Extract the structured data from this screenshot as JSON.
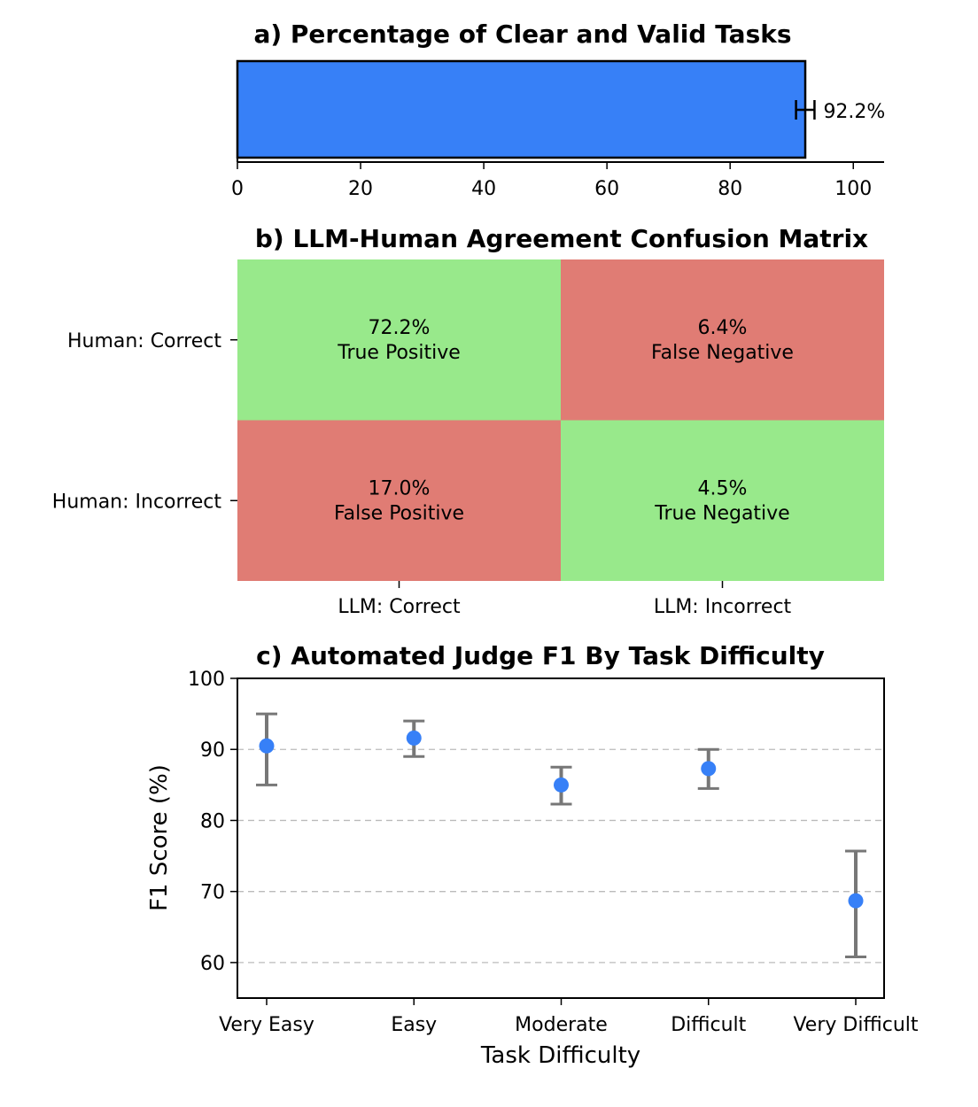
{
  "chart_data": [
    {
      "type": "bar",
      "orientation": "horizontal",
      "title": "a) Percentage of Clear and Valid Tasks",
      "values": [
        92.2
      ],
      "error": [
        1.5
      ],
      "value_label": "92.2%",
      "xlim": [
        0,
        105
      ],
      "xticks": [
        0,
        20,
        40,
        60,
        80,
        100
      ],
      "colors": {
        "bar": "#3780f7"
      }
    },
    {
      "type": "heatmap",
      "title": "b) LLM-Human Agreement Confusion Matrix",
      "rows": [
        "Human: Correct",
        "Human: Incorrect"
      ],
      "cols": [
        "LLM: Correct",
        "LLM: Incorrect"
      ],
      "cells": [
        [
          {
            "value": "72.2%",
            "label": "True Positive",
            "color": "#98e98b"
          },
          {
            "value": "6.4%",
            "label": "False Negative",
            "color": "#e07c74"
          }
        ],
        [
          {
            "value": "17.0%",
            "label": "False Positive",
            "color": "#e07c74"
          },
          {
            "value": "4.5%",
            "label": "True Negative",
            "color": "#98e98b"
          }
        ]
      ]
    },
    {
      "type": "scatter",
      "title": "c) Automated Judge F1 By Task Difficulty",
      "xlabel": "Task Difficulty",
      "ylabel": "F1 Score (%)",
      "categories": [
        "Very Easy",
        "Easy",
        "Moderate",
        "Difficult",
        "Very Difficult"
      ],
      "values": [
        90.5,
        91.6,
        85.0,
        87.3,
        68.7
      ],
      "err_low": [
        85.0,
        89.0,
        82.3,
        84.5,
        60.8
      ],
      "err_high": [
        95.0,
        94.0,
        87.5,
        90.0,
        75.7
      ],
      "ylim": [
        55,
        100
      ],
      "yticks": [
        60,
        70,
        80,
        90,
        100
      ],
      "grid": "horizontal dashed",
      "colors": {
        "point": "#3780f7",
        "errorbar": "#777777"
      }
    }
  ]
}
